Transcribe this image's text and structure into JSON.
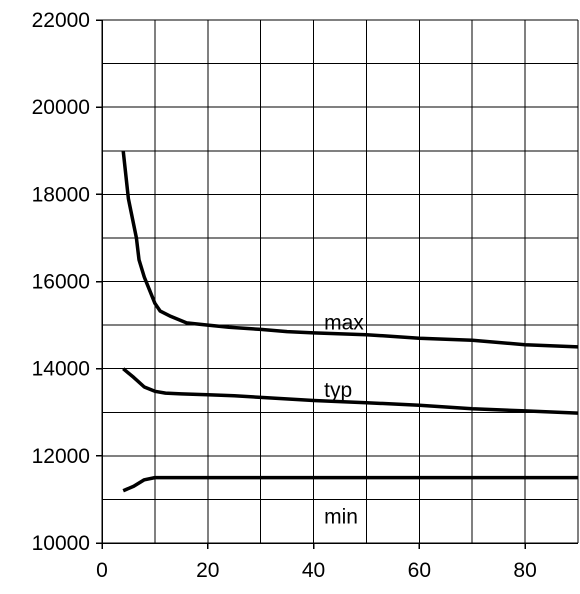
{
  "chart_data": {
    "type": "line",
    "title": "",
    "xlabel": "",
    "ylabel": "",
    "xlim": [
      0,
      90
    ],
    "ylim": [
      10000,
      22000
    ],
    "grid": true,
    "x_ticks": [
      0,
      20,
      40,
      60,
      80
    ],
    "x_tick_labels": [
      "0",
      "20",
      "40",
      "60",
      "80"
    ],
    "y_ticks": [
      10000,
      12000,
      14000,
      16000,
      18000,
      20000,
      22000
    ],
    "y_tick_labels": [
      "10000",
      "12000",
      "14000",
      "16000",
      "18000",
      "20000",
      "22000"
    ],
    "series": [
      {
        "name": "max",
        "label_at": [
          42,
          14900
        ],
        "points": [
          [
            4,
            19000
          ],
          [
            5,
            17900
          ],
          [
            6.5,
            17000
          ],
          [
            7,
            16500
          ],
          [
            8,
            16100
          ],
          [
            9,
            15800
          ],
          [
            10,
            15500
          ],
          [
            11,
            15320
          ],
          [
            13,
            15200
          ],
          [
            16,
            15050
          ],
          [
            20,
            15000
          ],
          [
            24,
            14950
          ],
          [
            30,
            14900
          ],
          [
            35,
            14850
          ],
          [
            40,
            14820
          ],
          [
            50,
            14780
          ],
          [
            60,
            14700
          ],
          [
            70,
            14650
          ],
          [
            80,
            14550
          ],
          [
            90,
            14500
          ]
        ]
      },
      {
        "name": "typ",
        "label_at": [
          42,
          13350
        ],
        "points": [
          [
            4,
            14000
          ],
          [
            6,
            13800
          ],
          [
            8,
            13580
          ],
          [
            10,
            13480
          ],
          [
            12,
            13440
          ],
          [
            15,
            13420
          ],
          [
            20,
            13400
          ],
          [
            25,
            13380
          ],
          [
            30,
            13340
          ],
          [
            40,
            13270
          ],
          [
            50,
            13220
          ],
          [
            60,
            13160
          ],
          [
            70,
            13080
          ],
          [
            80,
            13030
          ],
          [
            90,
            12980
          ]
        ]
      },
      {
        "name": "min",
        "label_at": [
          42,
          10450
        ],
        "points": [
          [
            4,
            11200
          ],
          [
            6,
            11300
          ],
          [
            8,
            11450
          ],
          [
            10,
            11500
          ],
          [
            15,
            11500
          ],
          [
            20,
            11500
          ],
          [
            40,
            11500
          ],
          [
            60,
            11500
          ],
          [
            80,
            11500
          ],
          [
            90,
            11500
          ]
        ]
      }
    ]
  }
}
